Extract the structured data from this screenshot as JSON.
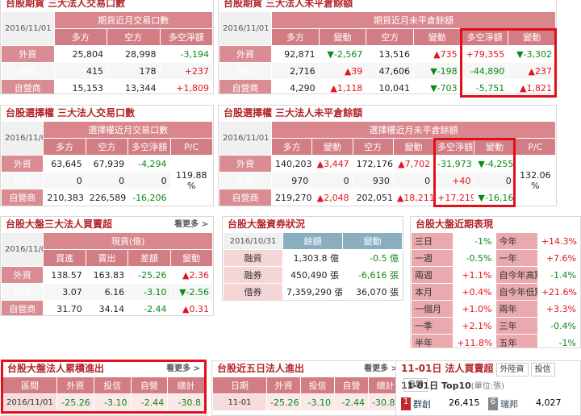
{
  "panels": [
    {
      "title": "台股期貨 三大法人交易口數",
      "date": "2016/11/01",
      "group": "期貨近月交易口數",
      "columns": [
        "多方",
        "空方",
        "多空淨額"
      ],
      "rows": [
        {
          "label": "外資",
          "cells": [
            "25,804",
            "28,998",
            "-3,194"
          ]
        },
        {
          "label": "投信",
          "cells": [
            "415",
            "178",
            "+237"
          ]
        },
        {
          "label": "自營商",
          "cells": [
            "15,153",
            "13,344",
            "+1,809"
          ]
        }
      ]
    },
    {
      "title": "台股期貨 三大法人未平倉餘額",
      "date": "2016/11/01",
      "group": "期貨近月未平倉餘額",
      "columns": [
        "多方",
        "變動",
        "空方",
        "變動",
        "多空淨額",
        "變動"
      ],
      "rows": [
        {
          "label": "外資",
          "cells": [
            "92,871",
            "▼-2,567",
            "13,516",
            "▲735",
            "+79,355",
            "▼-3,302"
          ]
        },
        {
          "label": "投信",
          "cells": [
            "2,716",
            "▲39",
            "47,606",
            "▼-198",
            "-44,890",
            "▲237"
          ]
        },
        {
          "label": "自營商",
          "cells": [
            "4,290",
            "▲1,118",
            "10,041",
            "▼-703",
            "-5,751",
            "▲1,821"
          ]
        }
      ]
    },
    {
      "title": "台股選擇權 三大法人交易口數",
      "date": "2016/11/01",
      "group": "選擇權近月交易口數",
      "columns": [
        "多方",
        "空方",
        "多空淨額",
        "P/C"
      ],
      "pc": "119.88 %",
      "rows": [
        {
          "label": "外資",
          "cells": [
            "63,645",
            "67,939",
            "-4,294"
          ]
        },
        {
          "label": "投信",
          "cells": [
            "0",
            "0",
            "0"
          ]
        },
        {
          "label": "自營商",
          "cells": [
            "210,383",
            "226,589",
            "-16,206"
          ]
        }
      ]
    },
    {
      "title": "台股選擇權 三大法人未平倉餘額",
      "date": "2016/11/01",
      "group": "選擇權近月未平倉餘額",
      "columns": [
        "多方",
        "變動",
        "空方",
        "變動",
        "多空淨額",
        "變動",
        "P/C"
      ],
      "pc": "132.06 %",
      "rows": [
        {
          "label": "外資",
          "cells": [
            "140,203",
            "▲3,447",
            "172,176",
            "▲7,702",
            "-31,973",
            "▼-4,255"
          ]
        },
        {
          "label": "投信",
          "cells": [
            "970",
            "0",
            "930",
            "0",
            "+40",
            "0"
          ]
        },
        {
          "label": "自營商",
          "cells": [
            "219,270",
            "▲2,048",
            "202,051",
            "▲18,211",
            "+17,219",
            "▼-16,163"
          ]
        }
      ]
    },
    {
      "title": "台股大盤三大法人買賣超",
      "more": "看更多 >",
      "date": "2016/11/01",
      "group": "現貨(億)",
      "columns": [
        "買進",
        "賣出",
        "差額",
        "變動"
      ],
      "rows": [
        {
          "label": "外資",
          "cells": [
            "138.57",
            "163.83",
            "-25.26",
            "▲2.36"
          ]
        },
        {
          "label": "投信",
          "cells": [
            "3.07",
            "6.16",
            "-3.10",
            "▼-2.56"
          ]
        },
        {
          "label": "自營商",
          "cells": [
            "31.70",
            "34.14",
            "-2.44",
            "▲0.31"
          ]
        }
      ]
    },
    {
      "title": "台股大盤資券狀況",
      "date": "2016/10/31",
      "columns": [
        "餘額",
        "變動"
      ],
      "rows": [
        {
          "label": "融資",
          "cells": [
            "1,303.8 億",
            "-0.5 億"
          ]
        },
        {
          "label": "融券",
          "cells": [
            "450,490 張",
            "-6,616 張"
          ]
        },
        {
          "label": "借券",
          "cells": [
            "7,359,290 張",
            "36,070 張"
          ]
        }
      ]
    },
    {
      "title": "台股大盤近期表現",
      "rows": [
        {
          "cells": [
            "三日",
            "-1%",
            "今年",
            "+14.3%"
          ]
        },
        {
          "cells": [
            "一週",
            "-0.5%",
            "一年",
            "+7.6%"
          ]
        },
        {
          "cells": [
            "兩週",
            "+1.1%",
            "自今年高點",
            "-1.4%"
          ]
        },
        {
          "cells": [
            "本月",
            "+0.4%",
            "自今年低點",
            "+21.6%"
          ]
        },
        {
          "cells": [
            "一個月",
            "+1.0%",
            "兩年",
            "+3.3%"
          ]
        },
        {
          "cells": [
            "一季",
            "+2.1%",
            "三年",
            "-0.4%"
          ]
        },
        {
          "cells": [
            "半年",
            "+11.8%",
            "五年",
            "-1%"
          ]
        }
      ]
    },
    {
      "title": "台股大盤法人累積進出",
      "more": "看更多 >",
      "columns": [
        "區間",
        "外資",
        "投信",
        "自營",
        "總計"
      ],
      "rows": [
        {
          "cells": [
            "2016/11/01",
            "-25.26",
            "-3.10",
            "-2.44",
            "-30.8"
          ]
        }
      ]
    },
    {
      "title": "台股近五日法人進出",
      "more": "看更多 >",
      "columns": [
        "日期",
        "外資",
        "投信",
        "自營",
        "總計"
      ],
      "rows": [
        {
          "cells": [
            "11-01",
            "-25.26",
            "-3.10",
            "-2.44",
            "-30.80"
          ]
        }
      ]
    },
    {
      "title": "11-01日 法人買賣超",
      "buttons": [
        "外陸資",
        "投信",
        "自營"
      ],
      "subtitle": "11-01日 Top10",
      "unit": "(單位:張)",
      "ranking": [
        {
          "rank": "1",
          "name": "群創",
          "value": "26,415"
        },
        {
          "rank": "6",
          "name": "瑞邦",
          "value": "4,027"
        }
      ]
    }
  ]
}
